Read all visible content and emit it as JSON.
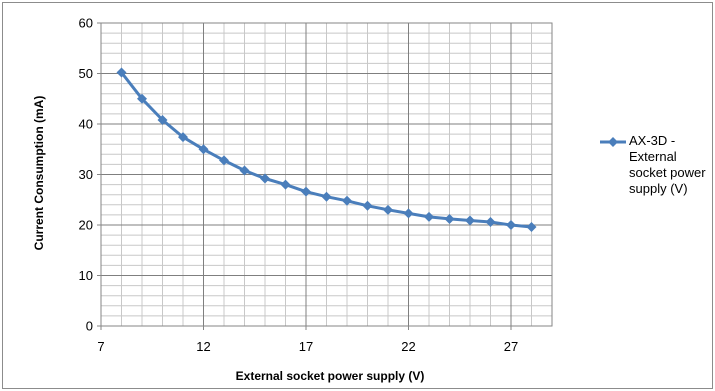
{
  "chart_data": {
    "type": "line",
    "title": "",
    "xlabel": "External socket  power supply  (V)",
    "ylabel": "Current Consumption (mA)",
    "xlim": [
      7,
      29
    ],
    "ylim": [
      0,
      60
    ],
    "x_ticks": [
      "7",
      "12",
      "17",
      "22",
      "27"
    ],
    "y_ticks": [
      "0",
      "10",
      "20",
      "30",
      "40",
      "50",
      "60"
    ],
    "grid": true,
    "legend_position": "right",
    "series": [
      {
        "name": "AX-3D - External socket power supply (V)",
        "color": "#4a7ebb",
        "marker": "diamond",
        "x": [
          8,
          9,
          10,
          11,
          12,
          13,
          14,
          15,
          16,
          17,
          18,
          19,
          20,
          21,
          22,
          23,
          24,
          25,
          26,
          27,
          28
        ],
        "y": [
          50.2,
          45.0,
          40.8,
          37.4,
          35.0,
          32.8,
          30.8,
          29.2,
          28.0,
          26.6,
          25.6,
          24.8,
          23.8,
          23.0,
          22.3,
          21.6,
          21.2,
          20.9,
          20.6,
          20.0,
          19.6
        ]
      }
    ]
  }
}
